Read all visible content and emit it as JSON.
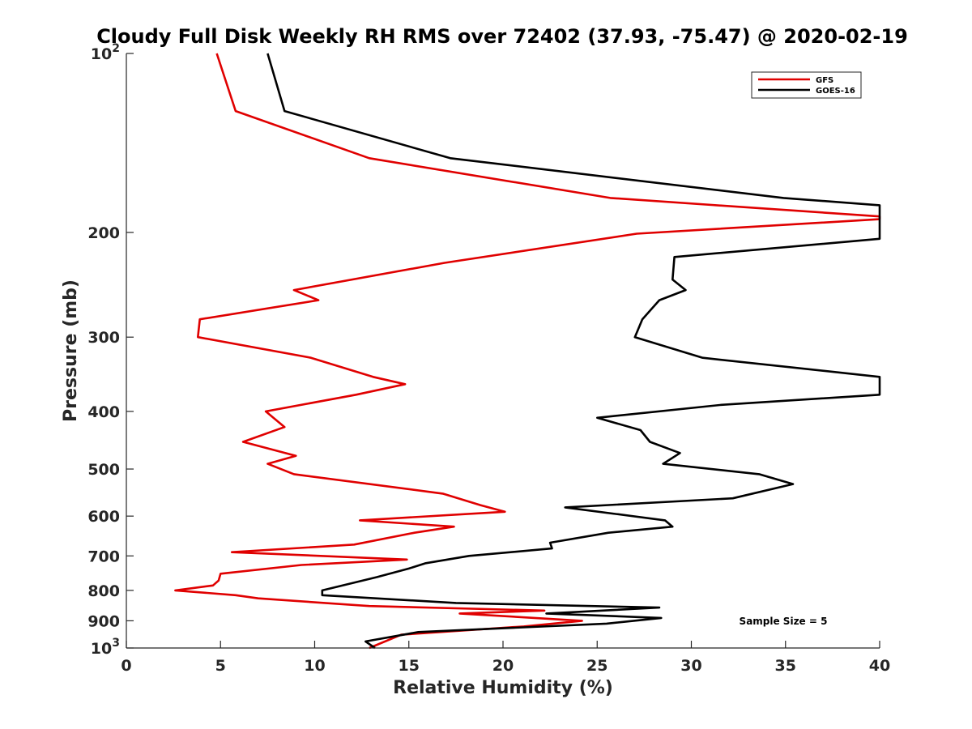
{
  "chart_data": {
    "type": "line",
    "title": "Cloudy Full Disk Weekly RH RMS over 72402 (37.93, -75.47) @ 2020-02-19",
    "xlabel": "Relative Humidity (%)",
    "ylabel": "Pressure (mb)",
    "xlim": [
      0,
      40
    ],
    "ylim": [
      100,
      1000
    ],
    "yscale": "log",
    "y_reversed": true,
    "grid": false,
    "legend_position": "top-right",
    "x_ticks": [
      "0",
      "5",
      "10",
      "15",
      "20",
      "25",
      "30",
      "35",
      "40"
    ],
    "y_ticks": [
      {
        "value": 100,
        "base": "10",
        "exp": "2"
      },
      {
        "value": 200,
        "label": "200"
      },
      {
        "value": 300,
        "label": "300"
      },
      {
        "value": 400,
        "label": "400"
      },
      {
        "value": 500,
        "label": "500"
      },
      {
        "value": 600,
        "label": "600"
      },
      {
        "value": 700,
        "label": "700"
      },
      {
        "value": 800,
        "label": "800"
      },
      {
        "value": 900,
        "label": "900"
      },
      {
        "value": 1000,
        "base": "10",
        "exp": "3"
      }
    ],
    "annotation": "Sample Size = 5",
    "series": [
      {
        "name": "GFS",
        "color": "#e00000",
        "points": [
          [
            4.8,
            100
          ],
          [
            5.8,
            125
          ],
          [
            12.9,
            150
          ],
          [
            25.7,
            175
          ],
          [
            40,
            188
          ],
          [
            40,
            190
          ],
          [
            27.1,
            201
          ],
          [
            16.9,
            225
          ],
          [
            8.9,
            250
          ],
          [
            10.2,
            260
          ],
          [
            3.9,
            280
          ],
          [
            3.8,
            300
          ],
          [
            9.8,
            325
          ],
          [
            13.1,
            350
          ],
          [
            14.8,
            360
          ],
          [
            12.2,
            375
          ],
          [
            7.4,
            400
          ],
          [
            8.4,
            425
          ],
          [
            6.2,
            450
          ],
          [
            9.0,
            475
          ],
          [
            7.5,
            490
          ],
          [
            8.9,
            510
          ],
          [
            16.8,
            550
          ],
          [
            18.8,
            575
          ],
          [
            20.1,
            590
          ],
          [
            12.4,
            610
          ],
          [
            17.4,
            625
          ],
          [
            15.3,
            640
          ],
          [
            12.1,
            670
          ],
          [
            5.6,
            690
          ],
          [
            14.9,
            710
          ],
          [
            9.3,
            725
          ],
          [
            5.0,
            750
          ],
          [
            4.9,
            770
          ],
          [
            4.6,
            785
          ],
          [
            2.6,
            800
          ],
          [
            5.8,
            815
          ],
          [
            7.0,
            825
          ],
          [
            12.9,
            850
          ],
          [
            22.2,
            865
          ],
          [
            17.7,
            875
          ],
          [
            24.2,
            900
          ],
          [
            21.1,
            920
          ],
          [
            14.6,
            950
          ],
          [
            12.9,
            1000
          ]
        ]
      },
      {
        "name": "GOES-16",
        "color": "#000000",
        "points": [
          [
            7.5,
            100
          ],
          [
            8.4,
            125
          ],
          [
            17.2,
            150
          ],
          [
            34.9,
            175
          ],
          [
            40,
            180
          ],
          [
            40,
            205
          ],
          [
            29.1,
            220
          ],
          [
            29.0,
            240
          ],
          [
            29.7,
            250
          ],
          [
            28.3,
            260
          ],
          [
            27.4,
            280
          ],
          [
            27.0,
            300
          ],
          [
            30.6,
            325
          ],
          [
            40,
            350
          ],
          [
            40,
            375
          ],
          [
            31.6,
            390
          ],
          [
            25.0,
            410
          ],
          [
            27.3,
            430
          ],
          [
            27.8,
            450
          ],
          [
            29.4,
            470
          ],
          [
            28.5,
            490
          ],
          [
            33.6,
            510
          ],
          [
            35.4,
            530
          ],
          [
            32.2,
            560
          ],
          [
            23.3,
            580
          ],
          [
            28.6,
            610
          ],
          [
            29.0,
            625
          ],
          [
            25.6,
            640
          ],
          [
            22.5,
            665
          ],
          [
            22.6,
            680
          ],
          [
            18.2,
            700
          ],
          [
            15.9,
            720
          ],
          [
            15.0,
            735
          ],
          [
            13.3,
            760
          ],
          [
            10.4,
            800
          ],
          [
            10.4,
            815
          ],
          [
            17.5,
            840
          ],
          [
            28.3,
            855
          ],
          [
            22.3,
            875
          ],
          [
            28.4,
            890
          ],
          [
            25.5,
            910
          ],
          [
            15.5,
            940
          ],
          [
            12.7,
            975
          ],
          [
            13.2,
            1000
          ]
        ]
      }
    ]
  }
}
